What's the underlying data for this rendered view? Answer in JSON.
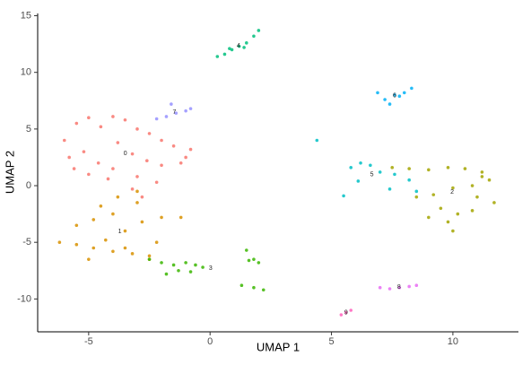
{
  "chart_data": {
    "type": "scatter",
    "x_label": "UMAP 1",
    "y_label": "UMAP 2",
    "xlim": [
      -7.1,
      12.7
    ],
    "ylim": [
      -12.9,
      15.2
    ],
    "xticks": [
      -5,
      0,
      5,
      10
    ],
    "yticks": [
      -10,
      -5,
      0,
      5,
      10,
      15
    ],
    "grid": false,
    "series": [
      {
        "name": "0",
        "color": "#F8766D",
        "x": [
          -6,
          -5.5,
          -5,
          -4.5,
          -4,
          -3.5,
          -3,
          -2.5,
          -2,
          -1.5,
          -1,
          -0.8,
          -5.8,
          -5.2,
          -4.6,
          -3.8,
          -3.2,
          -2.6,
          -2,
          -1.2,
          -5,
          -4,
          -3,
          -2.2,
          -3.2,
          -2.8,
          -4.2,
          -5.6
        ],
        "y": [
          4,
          5.5,
          6,
          5.2,
          6.1,
          5.8,
          5,
          4.6,
          4,
          3.5,
          2.5,
          3.2,
          2.5,
          3,
          2,
          3.8,
          2.8,
          2.2,
          1.8,
          2,
          1,
          1.5,
          0.8,
          0.3,
          -0.3,
          -1,
          0.6,
          1.5
        ]
      },
      {
        "name": "1",
        "color": "#D89000",
        "x": [
          -6.2,
          -5.5,
          -4.8,
          -4,
          -3.2,
          -2.5,
          -5.5,
          -4.8,
          -4,
          -3.5,
          -3,
          -2,
          -1.2,
          -5,
          -4.3,
          -3.8,
          -2.8,
          -2.2,
          -3.5,
          -3,
          -4.5,
          -2.5
        ],
        "y": [
          -5,
          -5.2,
          -5.5,
          -5.8,
          -6,
          -6.2,
          -3.5,
          -3,
          -2.5,
          -4,
          -1.5,
          -2.8,
          -2.8,
          -6.5,
          -4.8,
          -1,
          -3.2,
          -5,
          -5.5,
          -0.5,
          -1.8,
          -6.5
        ]
      },
      {
        "name": "2",
        "color": "#A3A500",
        "x": [
          7.5,
          8.2,
          9,
          9.8,
          10.5,
          11.2,
          11.5,
          10.8,
          10,
          9.2,
          8.5,
          9.5,
          10.2,
          11,
          11.7,
          10.8,
          9.8,
          9,
          10,
          11.2
        ],
        "y": [
          1.6,
          1.5,
          1.4,
          1.6,
          1.5,
          1.2,
          0.5,
          0,
          -0.2,
          -0.8,
          -1,
          -2,
          -2.5,
          -1,
          -1.5,
          -2.2,
          -3.2,
          -2.8,
          -4,
          0.8
        ]
      },
      {
        "name": "3",
        "color": "#39B600",
        "x": [
          -2.5,
          -2,
          -1.5,
          -1,
          -0.6,
          -0.3,
          -1.3,
          -0.8,
          1.5,
          1.8,
          2,
          1.6,
          1.3,
          1.8,
          2.2,
          -1.8
        ],
        "y": [
          -6.5,
          -6.8,
          -7,
          -6.8,
          -7,
          -7.2,
          -7.5,
          -7.6,
          -5.7,
          -6.5,
          -6.8,
          -6.6,
          -8.8,
          -9,
          -9.2,
          -7.8
        ]
      },
      {
        "name": "4",
        "color": "#00BF7D",
        "x": [
          0.3,
          0.6,
          0.9,
          1.2,
          1.5,
          1.8,
          2,
          0.8,
          1.4
        ],
        "y": [
          11.4,
          11.6,
          12,
          12.3,
          12.6,
          13.2,
          13.7,
          12.1,
          12.2
        ]
      },
      {
        "name": "5",
        "color": "#00BFC4",
        "x": [
          5.8,
          6.2,
          6.6,
          7,
          7.6,
          8.2,
          7.4,
          6.1,
          5.5,
          4.4,
          8.5
        ],
        "y": [
          1.6,
          2,
          1.8,
          1.2,
          1,
          0.5,
          -0.3,
          0.4,
          -0.9,
          4,
          -0.5
        ]
      },
      {
        "name": "6",
        "color": "#00B0F6",
        "x": [
          6.9,
          7.2,
          7.6,
          8,
          8.3,
          7.4,
          7.8
        ],
        "y": [
          8.2,
          7.6,
          8,
          8.2,
          8.6,
          7.2,
          7.9
        ]
      },
      {
        "name": "7",
        "color": "#9590FF",
        "x": [
          -2.2,
          -1.8,
          -1.4,
          -1,
          -0.8,
          -1.6
        ],
        "y": [
          5.9,
          6.1,
          6.4,
          6.6,
          6.8,
          7.2
        ]
      },
      {
        "name": "8",
        "color": "#E76BF3",
        "x": [
          7,
          7.4,
          7.8,
          8.2,
          8.5
        ],
        "y": [
          -9,
          -9.1,
          -9,
          -8.9,
          -8.8
        ]
      },
      {
        "name": "9",
        "color": "#FF62BC",
        "x": [
          5.4,
          5.6,
          5.8
        ],
        "y": [
          -11.4,
          -11.2,
          -11
        ]
      }
    ]
  }
}
